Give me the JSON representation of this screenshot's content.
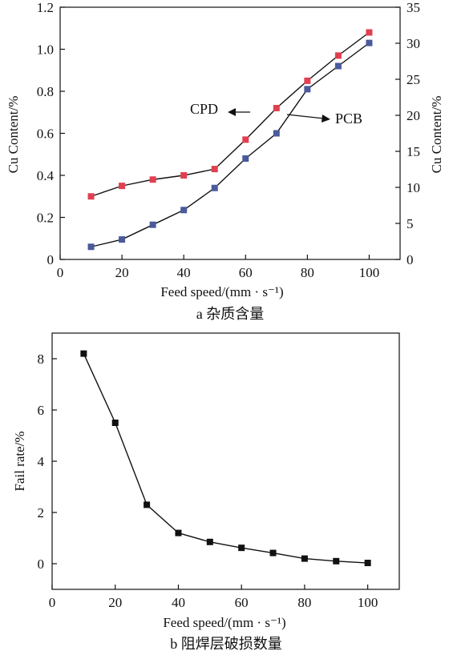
{
  "colors": {
    "cpd": "#e0404f",
    "pcb": "#4a5a9a",
    "fail": "#111111",
    "axis": "#111111"
  },
  "chart_data": [
    {
      "type": "line",
      "caption": "a 杂质含量",
      "xlabel": "Feed speed/(mm · s⁻¹)",
      "ylabel": "Cu Content/%",
      "ylabel_right": "Cu Content/%",
      "xlim": [
        0,
        110
      ],
      "ylim": [
        0,
        1.2
      ],
      "ylim_right": [
        0,
        35
      ],
      "x_ticks": [
        0,
        20,
        40,
        60,
        80,
        100
      ],
      "y_ticks": [
        "0",
        "0.2",
        "0.4",
        "0.6",
        "0.8",
        "1.0",
        "1.2"
      ],
      "y_ticks_right": [
        "0",
        "5",
        "10",
        "15",
        "20",
        "25",
        "30",
        "35"
      ],
      "x": [
        10,
        20,
        30,
        40,
        50,
        60,
        70,
        80,
        90,
        100
      ],
      "series": [
        {
          "name": "CPD",
          "axis": "left",
          "color": "#e0404f",
          "values": [
            0.3,
            0.35,
            0.38,
            0.4,
            0.43,
            0.57,
            0.72,
            0.85,
            0.97,
            1.08
          ]
        },
        {
          "name": "PCB",
          "axis": "left",
          "color": "#4a5a9a",
          "values": [
            0.06,
            0.095,
            0.165,
            0.235,
            0.34,
            0.48,
            0.6,
            0.81,
            0.92,
            1.03
          ]
        }
      ],
      "annotations": [
        "CPD",
        "PCB"
      ],
      "grid": false
    },
    {
      "type": "line",
      "caption": "b 阻焊层破损数量",
      "xlabel": "Feed speed/(mm · s⁻¹)",
      "ylabel": "Fail rate/%",
      "xlim": [
        0,
        110
      ],
      "ylim": [
        -1,
        9
      ],
      "x_ticks": [
        0,
        20,
        40,
        60,
        80,
        100
      ],
      "y_ticks": [
        0,
        2,
        4,
        6,
        8
      ],
      "x": [
        10,
        20,
        30,
        40,
        50,
        60,
        70,
        80,
        90,
        100
      ],
      "series": [
        {
          "values": [
            8.2,
            5.5,
            2.3,
            1.2,
            0.85,
            0.62,
            0.42,
            0.2,
            0.1,
            0.03
          ]
        }
      ],
      "grid": false
    }
  ]
}
